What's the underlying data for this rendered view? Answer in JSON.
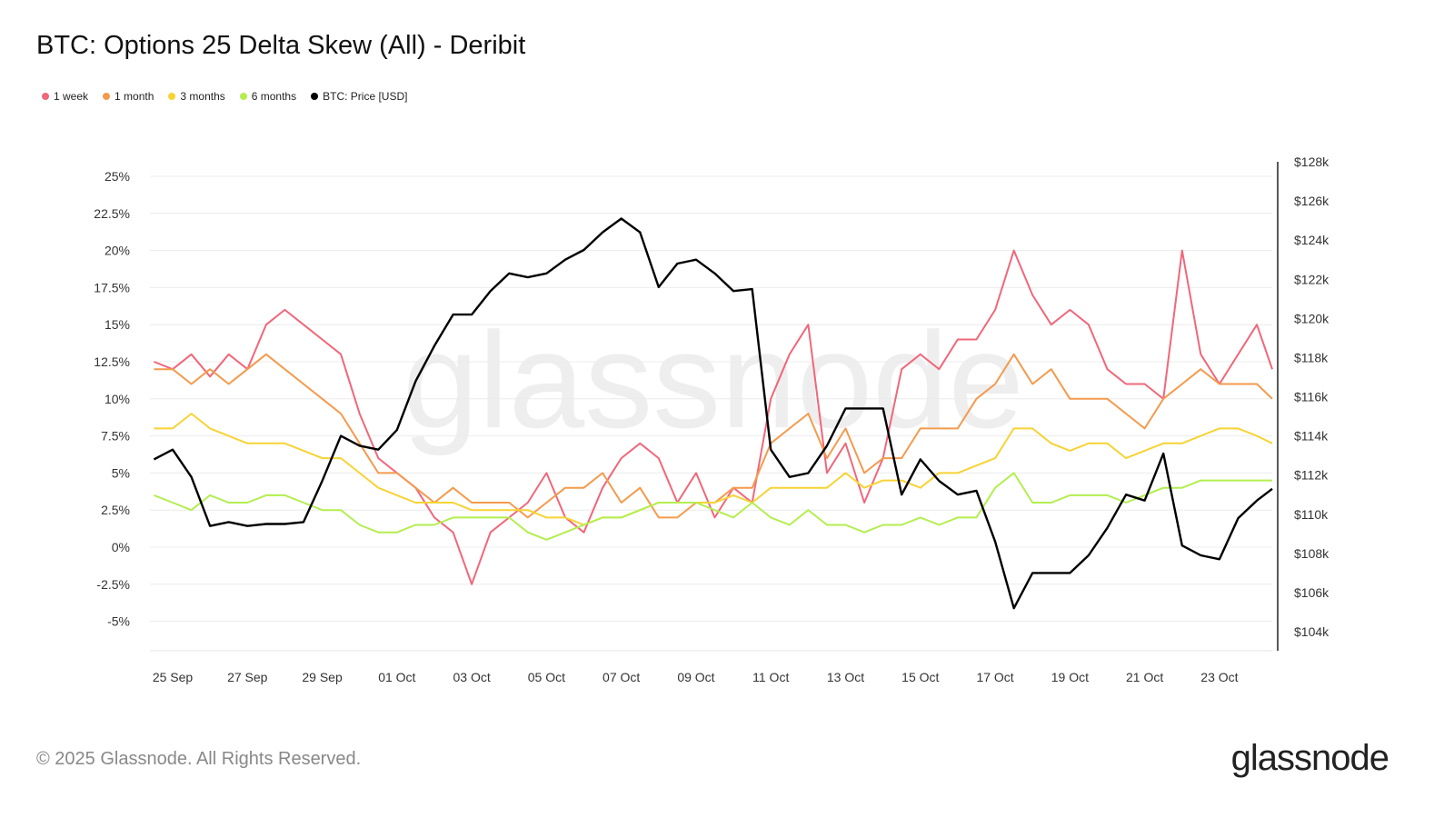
{
  "title": "BTC: Options 25 Delta Skew (All) - Deribit",
  "footer": "© 2025 Glassnode. All Rights Reserved.",
  "logo": "glassnode",
  "watermark": "glassnode",
  "chart_data": {
    "type": "line",
    "title": "BTC: Options 25 Delta Skew (All) - Deribit",
    "legend_position": "top-left",
    "grid": true,
    "x_ticks": [
      "25 Sep",
      "27 Sep",
      "29 Sep",
      "01 Oct",
      "03 Oct",
      "05 Oct",
      "07 Oct",
      "09 Oct",
      "11 Oct",
      "13 Oct",
      "15 Oct",
      "17 Oct",
      "19 Oct",
      "21 Oct",
      "23 Oct"
    ],
    "y_left": {
      "ticks": [
        "-5%",
        "-2.5%",
        "0%",
        "2.5%",
        "5%",
        "7.5%",
        "10%",
        "12.5%",
        "15%",
        "17.5%",
        "20%",
        "22.5%",
        "25%"
      ],
      "range": [
        -5,
        25
      ]
    },
    "y_right": {
      "ticks": [
        "$104k",
        "$106k",
        "$108k",
        "$110k",
        "$112k",
        "$114k",
        "$116k",
        "$118k",
        "$120k",
        "$122k",
        "$124k",
        "$126k",
        "$128k"
      ],
      "range": [
        104,
        128
      ]
    },
    "x": [
      "2025-09-24 12:00",
      "2025-09-25 00:00",
      "2025-09-25 12:00",
      "2025-09-26 00:00",
      "2025-09-26 12:00",
      "2025-09-27 00:00",
      "2025-09-27 12:00",
      "2025-09-28 00:00",
      "2025-09-28 12:00",
      "2025-09-29 00:00",
      "2025-09-29 12:00",
      "2025-09-30 00:00",
      "2025-09-30 12:00",
      "2025-10-01 00:00",
      "2025-10-01 12:00",
      "2025-10-02 00:00",
      "2025-10-02 12:00",
      "2025-10-03 00:00",
      "2025-10-03 12:00",
      "2025-10-04 00:00",
      "2025-10-04 12:00",
      "2025-10-05 00:00",
      "2025-10-05 12:00",
      "2025-10-06 00:00",
      "2025-10-06 12:00",
      "2025-10-07 00:00",
      "2025-10-07 12:00",
      "2025-10-08 00:00",
      "2025-10-08 12:00",
      "2025-10-09 00:00",
      "2025-10-09 12:00",
      "2025-10-10 00:00",
      "2025-10-10 12:00",
      "2025-10-11 00:00",
      "2025-10-11 12:00",
      "2025-10-12 00:00",
      "2025-10-12 12:00",
      "2025-10-13 00:00",
      "2025-10-13 12:00",
      "2025-10-14 00:00",
      "2025-10-14 12:00",
      "2025-10-15 00:00",
      "2025-10-15 12:00",
      "2025-10-16 00:00",
      "2025-10-16 12:00",
      "2025-10-17 00:00",
      "2025-10-17 12:00",
      "2025-10-18 00:00",
      "2025-10-18 12:00",
      "2025-10-19 00:00",
      "2025-10-19 12:00",
      "2025-10-20 00:00",
      "2025-10-20 12:00",
      "2025-10-21 00:00",
      "2025-10-21 12:00",
      "2025-10-22 00:00",
      "2025-10-22 12:00",
      "2025-10-23 00:00",
      "2025-10-23 12:00",
      "2025-10-24 00:00",
      "2025-10-24 12:00"
    ],
    "series": [
      {
        "name": "1 week",
        "color": "#f0677a",
        "axis": "left",
        "values": [
          12.5,
          12,
          13,
          11.5,
          13,
          12,
          15,
          16,
          15,
          14,
          13,
          9,
          6,
          5,
          4,
          2,
          1,
          -2.5,
          1,
          2,
          3,
          5,
          2,
          1,
          4,
          6,
          7,
          6,
          3,
          5,
          2,
          4,
          3,
          10,
          13,
          15,
          5,
          7,
          3,
          6,
          12,
          13,
          12,
          14,
          14,
          16,
          20,
          17,
          15,
          16,
          15,
          12,
          11,
          11,
          10,
          20,
          13,
          11,
          13,
          15,
          12
        ]
      },
      {
        "name": "1 month",
        "color": "#f49a4c",
        "axis": "left",
        "values": [
          12,
          12,
          11,
          12,
          11,
          12,
          13,
          12,
          11,
          10,
          9,
          7,
          5,
          5,
          4,
          3,
          4,
          3,
          3,
          3,
          2,
          3,
          4,
          4,
          5,
          3,
          4,
          2,
          2,
          3,
          3,
          4,
          4,
          7,
          8,
          9,
          6,
          8,
          5,
          6,
          6,
          8,
          8,
          8,
          10,
          11,
          13,
          11,
          12,
          10,
          10,
          10,
          9,
          8,
          10,
          11,
          12,
          11,
          11,
          11,
          10
        ]
      },
      {
        "name": "3 months",
        "color": "#f7d334",
        "axis": "left",
        "values": [
          8,
          8,
          9,
          8,
          7.5,
          7,
          7,
          7,
          6.5,
          6,
          6,
          5,
          4,
          3.5,
          3,
          3,
          3,
          2.5,
          2.5,
          2.5,
          2.5,
          2,
          2,
          1.5,
          2,
          2,
          2.5,
          3,
          3,
          3,
          3,
          3.5,
          3,
          4,
          4,
          4,
          4,
          5,
          4,
          4.5,
          4.5,
          4,
          5,
          5,
          5.5,
          6,
          8,
          8,
          7,
          6.5,
          7,
          7,
          6,
          6.5,
          7,
          7,
          7.5,
          8,
          8,
          7.5,
          7
        ]
      },
      {
        "name": "6 months",
        "color": "#b3ee4f",
        "axis": "left",
        "values": [
          3.5,
          3,
          2.5,
          3.5,
          3,
          3,
          3.5,
          3.5,
          3,
          2.5,
          2.5,
          1.5,
          1,
          1,
          1.5,
          1.5,
          2,
          2,
          2,
          2,
          1,
          0.5,
          1,
          1.5,
          2,
          2,
          2.5,
          3,
          3,
          3,
          2.5,
          2,
          3,
          2,
          1.5,
          2.5,
          1.5,
          1.5,
          1,
          1.5,
          1.5,
          2,
          1.5,
          2,
          2,
          4,
          5,
          3,
          3,
          3.5,
          3.5,
          3.5,
          3,
          3.5,
          4,
          4,
          4.5,
          4.5,
          4.5,
          4.5,
          4.5
        ]
      },
      {
        "name": "BTC: Price [USD]",
        "color": "#000000",
        "axis": "right",
        "unit": "$k",
        "values": [
          112.8,
          113.3,
          111.9,
          109.4,
          109.6,
          109.4,
          109.5,
          109.5,
          109.6,
          111.7,
          114.0,
          113.5,
          113.3,
          114.3,
          116.8,
          118.6,
          120.2,
          120.2,
          121.4,
          122.3,
          122.1,
          122.3,
          123.0,
          123.5,
          124.4,
          125.1,
          124.4,
          121.6,
          122.8,
          123.0,
          122.3,
          121.4,
          121.5,
          113.3,
          111.9,
          112.1,
          113.5,
          115.4,
          115.4,
          115.4,
          111.0,
          112.8,
          111.7,
          111.0,
          111.2,
          108.6,
          105.2,
          107.0,
          107.0,
          107.0,
          107.9,
          109.3,
          111.0,
          110.7,
          113.1,
          108.4,
          107.9,
          107.7,
          109.8,
          110.7,
          111.3
        ]
      }
    ]
  }
}
